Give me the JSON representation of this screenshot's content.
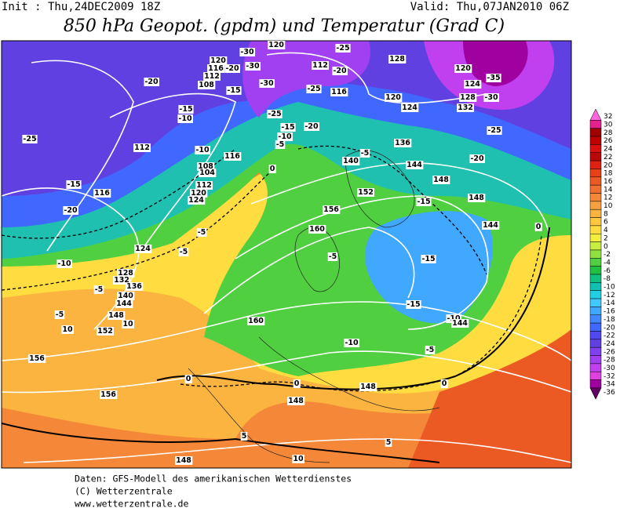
{
  "header": {
    "init": "Init : Thu,24DEC2009 18Z",
    "valid": "Valid: Thu,07JAN2010 06Z",
    "title": "850 hPa Geopot. (gpdm) und Temperatur (Grad C)"
  },
  "colorbar": {
    "levels": [
      32,
      30,
      28,
      26,
      24,
      22,
      20,
      18,
      16,
      14,
      12,
      10,
      8,
      6,
      4,
      2,
      0,
      -2,
      -4,
      -6,
      -8,
      -10,
      -12,
      -14,
      -16,
      -18,
      -20,
      -22,
      -24,
      -26,
      -28,
      -30,
      -32,
      -34,
      -36
    ],
    "colors": [
      "#ff66dd",
      "#e6208e",
      "#a00000",
      "#c00000",
      "#d81010",
      "#b80808",
      "#e02010",
      "#e84018",
      "#ec5a24",
      "#f07030",
      "#f48838",
      "#f8a040",
      "#fbb440",
      "#ffc840",
      "#ffdc40",
      "#f2ee40",
      "#c8ee40",
      "#90e040",
      "#50d040",
      "#20c040",
      "#10c080",
      "#10c0b0",
      "#20d0e0",
      "#40c8ff",
      "#40a8ff",
      "#4088ff",
      "#4068ff",
      "#5048f0",
      "#6040e0",
      "#8040f0",
      "#a040f0",
      "#c040f0",
      "#e040e0",
      "#a000a0",
      "#600060"
    ]
  },
  "map_labels": [
    -30,
    120,
    116,
    -30,
    -20,
    112,
    -30,
    108,
    -15,
    -20,
    -15,
    -10,
    120,
    -25,
    112,
    -20,
    -25,
    116,
    128,
    120,
    -35,
    124,
    120,
    124,
    128,
    -30,
    132,
    -25,
    -15,
    -20,
    -10,
    -5,
    -25,
    136,
    -25,
    112,
    -10,
    116,
    -5,
    140,
    144,
    -20,
    108,
    104,
    112,
    -15,
    0,
    116,
    120,
    124,
    148,
    152,
    -15,
    148,
    -20,
    156,
    -5,
    160,
    144,
    0,
    124,
    -5,
    -5,
    -15,
    -10,
    128,
    132,
    136,
    -5,
    140,
    144,
    -15,
    -5,
    148,
    -10,
    144,
    10,
    160,
    -10,
    152,
    10,
    -5,
    156,
    0,
    0,
    148,
    0,
    156,
    148,
    5,
    5,
    148,
    10
  ],
  "footer": [
    "Daten: GFS-Modell des amerikanischen Wetterdienstes",
    "(C) Wetterzentrale",
    "www.wetterzentrale.de"
  ]
}
